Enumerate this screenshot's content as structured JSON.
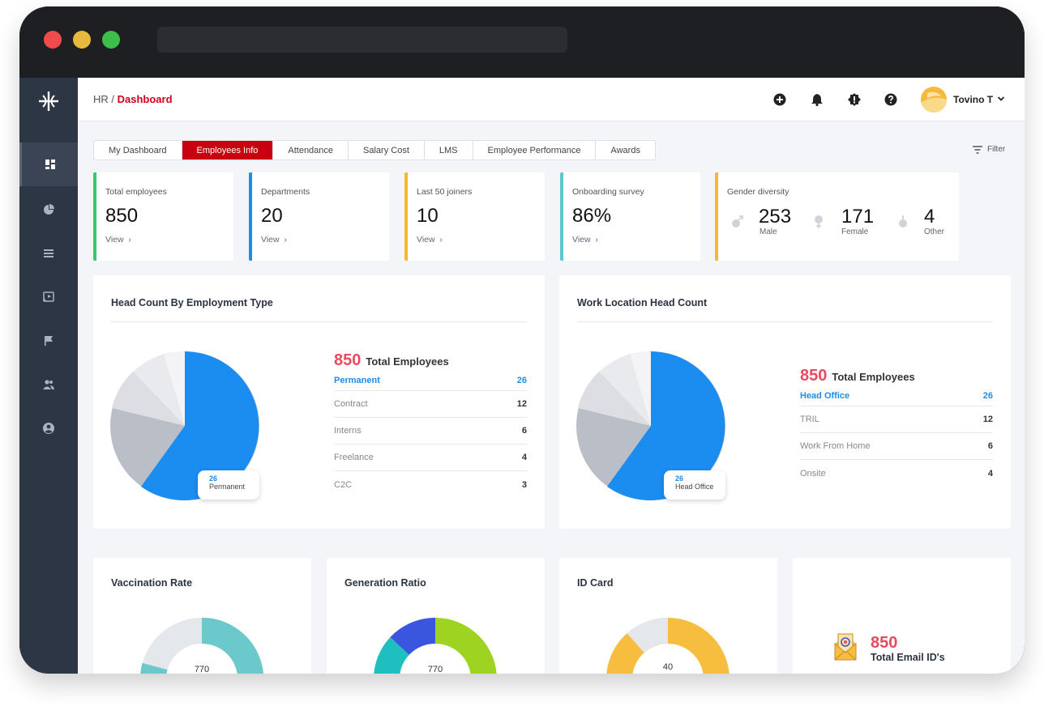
{
  "breadcrumb": {
    "root": "HR",
    "separator": " / ",
    "current": "Dashboard"
  },
  "user": {
    "name": "Tovino T"
  },
  "tabs": [
    {
      "label": "My Dashboard",
      "active": false
    },
    {
      "label": "Employees Info",
      "active": true
    },
    {
      "label": "Attendance",
      "active": false
    },
    {
      "label": "Salary Cost",
      "active": false
    },
    {
      "label": "LMS",
      "active": false
    },
    {
      "label": "Employee Performance",
      "active": false
    },
    {
      "label": "Awards",
      "active": false
    }
  ],
  "filter_label": "Filter",
  "stats": [
    {
      "label": "Total employees",
      "value": "850",
      "link": "View",
      "color": "#2ecc71"
    },
    {
      "label": "Departments",
      "value": "20",
      "link": "View",
      "color": "#1b8cf0"
    },
    {
      "label": "Last 50 joiners",
      "value": "10",
      "link": "View",
      "color": "#f5b82e"
    },
    {
      "label": "Onboarding survey",
      "value": "86%",
      "link": "View",
      "color": "#5bc8cf"
    }
  ],
  "gender": {
    "label": "Gender diversity",
    "color": "#f5b82e",
    "items": [
      {
        "value": "253",
        "label": "Male",
        "icon": "male-icon"
      },
      {
        "value": "171",
        "label": "Female",
        "icon": "female-icon"
      },
      {
        "value": "4",
        "label": "Other",
        "icon": "other-gender-icon"
      }
    ]
  },
  "employment_type": {
    "title": "Head Count By Employment Type",
    "total_value": "850",
    "total_label": "Total Employees",
    "rows": [
      {
        "label": "Permanent",
        "value": "26"
      },
      {
        "label": "Contract",
        "value": "12"
      },
      {
        "label": "Interns",
        "value": "6"
      },
      {
        "label": "Freelance",
        "value": "4"
      },
      {
        "label": "C2C",
        "value": "3"
      }
    ],
    "callout_value": "26",
    "callout_label": "Permanent"
  },
  "work_location": {
    "title": "Work Location Head Count",
    "total_value": "850",
    "total_label": "Total Employees",
    "rows": [
      {
        "label": "Head Office",
        "value": "26"
      },
      {
        "label": "TRIL",
        "value": "12"
      },
      {
        "label": "Work From Home",
        "value": "6"
      },
      {
        "label": "Onsite",
        "value": "4"
      }
    ],
    "callout_value": "26",
    "callout_label": "Head Office"
  },
  "vaccination": {
    "title": "Vaccination Rate",
    "center": "770"
  },
  "generation": {
    "title": "Generation Ratio",
    "center": "770"
  },
  "id_card": {
    "title": "ID Card",
    "center": "40"
  },
  "email": {
    "value": "850",
    "label": "Total Email ID's"
  },
  "colors": {
    "accent_red": "#c8000f",
    "primary_blue": "#1b8cf0",
    "highlight_pink": "#e94a5f",
    "sidebar": "#2d3644"
  }
}
